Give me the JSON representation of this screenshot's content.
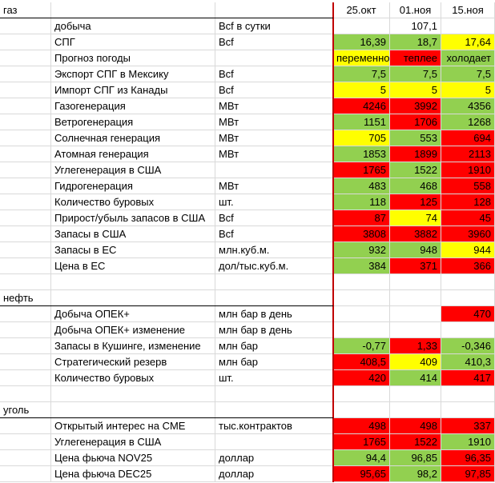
{
  "colors": {
    "red": "#ff0000",
    "yellow": "#ffff00",
    "green": "#92d050"
  },
  "header": {
    "section": "газ",
    "d1": "25.окт",
    "d2": "01.ноя",
    "d3": "15.ноя"
  },
  "rows": [
    {
      "c0": "",
      "name": "добыча",
      "unit": "Bcf  в сутки",
      "v1": "",
      "v2": "107,1",
      "v3": "",
      "b1": "",
      "b2": "",
      "b3": ""
    },
    {
      "c0": "",
      "name": "СПГ",
      "unit": "Bcf",
      "v1": "16,39",
      "v2": "18,7",
      "v3": "17,64",
      "b1": "green",
      "b2": "green",
      "b3": "yellow"
    },
    {
      "c0": "",
      "name": "Прогноз погоды",
      "unit": "",
      "v1": "переменно",
      "v2": "теплее",
      "v3": "холодает",
      "b1": "yellow",
      "b2": "red",
      "b3": "green"
    },
    {
      "c0": "",
      "name": "Экспорт СПГ в Мексику",
      "unit": "Bcf",
      "v1": "7,5",
      "v2": "7,5",
      "v3": "7,5",
      "b1": "green",
      "b2": "green",
      "b3": "green"
    },
    {
      "c0": "",
      "name": "Импорт СПГ из Канады",
      "unit": "Bcf",
      "v1": "5",
      "v2": "5",
      "v3": "5",
      "b1": "yellow",
      "b2": "yellow",
      "b3": "yellow"
    },
    {
      "c0": "",
      "name": "Газогенерация",
      "unit": "МВт",
      "v1": "4246",
      "v2": "3992",
      "v3": "4356",
      "b1": "red",
      "b2": "red",
      "b3": "green"
    },
    {
      "c0": "",
      "name": "Ветрогенерация",
      "unit": "МВт",
      "v1": "1151",
      "v2": "1706",
      "v3": "1268",
      "b1": "green",
      "b2": "red",
      "b3": "green"
    },
    {
      "c0": "",
      "name": "Солнечная генерация",
      "unit": "МВт",
      "v1": "705",
      "v2": "553",
      "v3": "694",
      "b1": "yellow",
      "b2": "green",
      "b3": "red"
    },
    {
      "c0": "",
      "name": "Атомная генерация",
      "unit": "МВт",
      "v1": "1853",
      "v2": "1899",
      "v3": "2113",
      "b1": "green",
      "b2": "red",
      "b3": "red"
    },
    {
      "c0": "",
      "name": "Углегенерация в США",
      "unit": "",
      "v1": "1765",
      "v2": "1522",
      "v3": "1910",
      "b1": "red",
      "b2": "green",
      "b3": "red"
    },
    {
      "c0": "",
      "name": "Гидрогенерация",
      "unit": "МВт",
      "v1": "483",
      "v2": "468",
      "v3": "558",
      "b1": "green",
      "b2": "green",
      "b3": "red"
    },
    {
      "c0": "",
      "name": "Количество буровых",
      "unit": "шт.",
      "v1": "118",
      "v2": "125",
      "v3": "128",
      "b1": "green",
      "b2": "red",
      "b3": "red"
    },
    {
      "c0": "",
      "name": "Прирост/убыль запасов в США",
      "unit": "Bcf",
      "v1": "87",
      "v2": "74",
      "v3": "45",
      "b1": "red",
      "b2": "yellow",
      "b3": "red"
    },
    {
      "c0": "",
      "name": "Запасы в США",
      "unit": "Bcf",
      "v1": "3808",
      "v2": "3882",
      "v3": "3960",
      "b1": "red",
      "b2": "red",
      "b3": "red"
    },
    {
      "c0": "",
      "name": "Запасы в ЕС",
      "unit": "млн.куб.м.",
      "v1": "932",
      "v2": "948",
      "v3": "944",
      "b1": "green",
      "b2": "green",
      "b3": "yellow"
    },
    {
      "c0": "",
      "name": "Цена в ЕС",
      "unit": "дол/тыс.куб.м.",
      "v1": "384",
      "v2": "371",
      "v3": "366",
      "b1": "green",
      "b2": "red",
      "b3": "red"
    },
    {
      "c0": "",
      "name": "",
      "unit": "",
      "v1": "",
      "v2": "",
      "v3": "",
      "b1": "",
      "b2": "",
      "b3": ""
    },
    {
      "c0": "нефть",
      "name": "",
      "unit": "",
      "v1": "",
      "v2": "",
      "v3": "",
      "b1": "",
      "b2": "",
      "b3": ""
    },
    {
      "c0": "",
      "name": "Добыча ОПЕК+",
      "unit": "млн бар в день",
      "v1": "",
      "v2": "",
      "v3": "470",
      "b1": "",
      "b2": "",
      "b3": "red"
    },
    {
      "c0": "",
      "name": "Добыча ОПЕК+ изменение",
      "unit": "млн бар в день",
      "v1": "",
      "v2": "",
      "v3": "",
      "b1": "",
      "b2": "",
      "b3": ""
    },
    {
      "c0": "",
      "name": "Запасы в Кушинге, изменение",
      "unit": "млн бар",
      "v1": "-0,77",
      "v2": "1,33",
      "v3": "-0,346",
      "b1": "green",
      "b2": "red",
      "b3": "green"
    },
    {
      "c0": "",
      "name": "Стратегический резерв",
      "unit": "млн бар",
      "v1": "408,5",
      "v2": "409",
      "v3": "410,3",
      "b1": "red",
      "b2": "yellow",
      "b3": "green"
    },
    {
      "c0": "",
      "name": "Количество буровых",
      "unit": "шт.",
      "v1": "420",
      "v2": "414",
      "v3": "417",
      "b1": "red",
      "b2": "green",
      "b3": "red"
    },
    {
      "c0": "",
      "name": "",
      "unit": "",
      "v1": "",
      "v2": "",
      "v3": "",
      "b1": "",
      "b2": "",
      "b3": ""
    },
    {
      "c0": "уголь",
      "name": "",
      "unit": "",
      "v1": "",
      "v2": "",
      "v3": "",
      "b1": "",
      "b2": "",
      "b3": ""
    },
    {
      "c0": "",
      "name": "Открытый интерес на CME",
      "unit": "тыс.контрактов",
      "v1": "498",
      "v2": "498",
      "v3": "337",
      "b1": "red",
      "b2": "red",
      "b3": "red"
    },
    {
      "c0": "",
      "name": "Углегенерация в США",
      "unit": "",
      "v1": "1765",
      "v2": "1522",
      "v3": "1910",
      "b1": "red",
      "b2": "red",
      "b3": "green"
    },
    {
      "c0": "",
      "name": "Цена фьюча NOV25",
      "unit": "доллар",
      "v1": "94,4",
      "v2": "96,85",
      "v3": "96,35",
      "b1": "green",
      "b2": "green",
      "b3": "red"
    },
    {
      "c0": "",
      "name": "Цена фьюча DEC25",
      "unit": "доллар",
      "v1": "95,65",
      "v2": "98,2",
      "v3": "97,85",
      "b1": "red",
      "b2": "green",
      "b3": "red"
    }
  ]
}
